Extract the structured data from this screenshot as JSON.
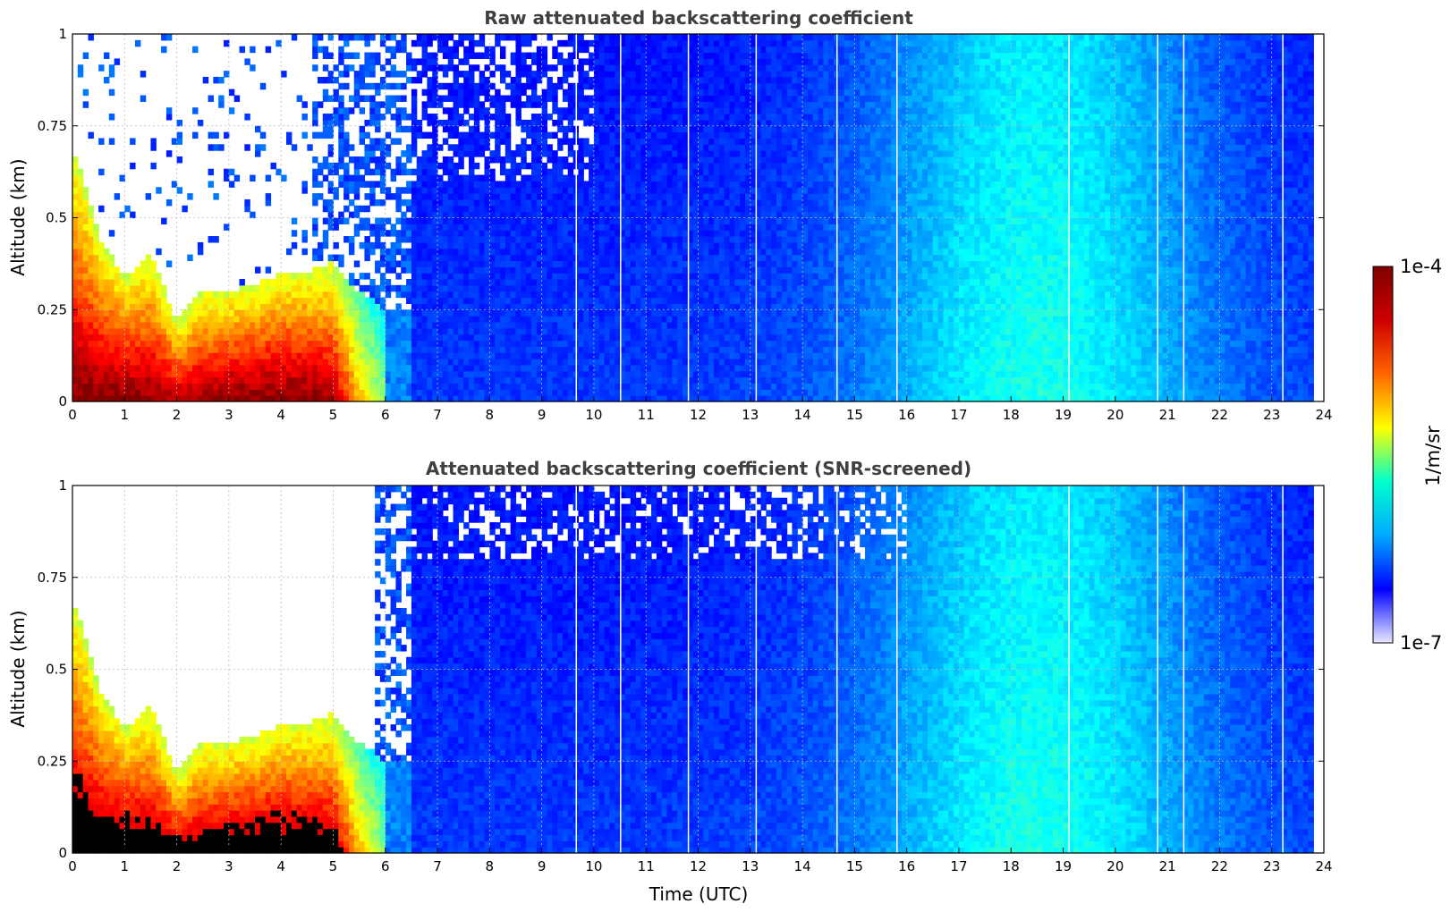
{
  "chart_data": [
    {
      "type": "heatmap",
      "title": "Raw attenuated backscattering coefficient",
      "xlabel": "",
      "ylabel": "Altitude (km)",
      "xlim": [
        0,
        24
      ],
      "ylim": [
        0,
        1
      ],
      "x_ticks": [
        "0",
        "1",
        "2",
        "3",
        "4",
        "5",
        "6",
        "7",
        "8",
        "9",
        "10",
        "11",
        "12",
        "13",
        "14",
        "15",
        "16",
        "17",
        "18",
        "19",
        "20",
        "21",
        "22",
        "23",
        "24"
      ],
      "y_ticks": [
        "0",
        "0.25",
        "0.5",
        "0.75",
        "1"
      ],
      "grid": true,
      "data_end_time": 23.8,
      "screened": false,
      "features": [
        {
          "time": 0.0,
          "aerosol_layer_top": 0.7,
          "intensity": 0.95
        },
        {
          "time": 0.5,
          "aerosol_layer_top": 0.45,
          "intensity": 0.95
        },
        {
          "time": 1.0,
          "aerosol_layer_top": 0.34,
          "intensity": 0.95
        },
        {
          "time": 1.5,
          "aerosol_layer_top": 0.4,
          "intensity": 0.93
        },
        {
          "time": 2.0,
          "aerosol_layer_top": 0.22,
          "intensity": 0.9
        },
        {
          "time": 2.5,
          "aerosol_layer_top": 0.3,
          "intensity": 0.92
        },
        {
          "time": 3.0,
          "aerosol_layer_top": 0.3,
          "intensity": 0.95
        },
        {
          "time": 3.5,
          "aerosol_layer_top": 0.32,
          "intensity": 0.95
        },
        {
          "time": 4.0,
          "aerosol_layer_top": 0.35,
          "intensity": 0.95
        },
        {
          "time": 4.5,
          "aerosol_layer_top": 0.35,
          "intensity": 0.95
        },
        {
          "time": 5.0,
          "aerosol_layer_top": 0.38,
          "intensity": 0.9
        },
        {
          "time": 5.5,
          "aerosol_layer_top": 0.3,
          "intensity": 0.55
        },
        {
          "time": 6.0,
          "aerosol_layer_top": 0.25,
          "intensity": 0.3
        }
      ]
    },
    {
      "type": "heatmap",
      "title": "Attenuated backscattering coefficient (SNR-screened)",
      "xlabel": "Time (UTC)",
      "ylabel": "Altitude (km)",
      "xlim": [
        0,
        24
      ],
      "ylim": [
        0,
        1
      ],
      "x_ticks": [
        "0",
        "1",
        "2",
        "3",
        "4",
        "5",
        "6",
        "7",
        "8",
        "9",
        "10",
        "11",
        "12",
        "13",
        "14",
        "15",
        "16",
        "17",
        "18",
        "19",
        "20",
        "21",
        "22",
        "23",
        "24"
      ],
      "y_ticks": [
        "0",
        "0.25",
        "0.5",
        "0.75",
        "1"
      ],
      "grid": true,
      "data_end_time": 23.8,
      "screened": true
    }
  ],
  "colorbar": {
    "label": "1/m/sr",
    "max_label": "1e-4",
    "min_label": "1e-7",
    "colormap": "jet",
    "colors": [
      "#e8e8ff",
      "#0000ff",
      "#00aaff",
      "#00ffcc",
      "#ffff00",
      "#ff6600",
      "#cc0000",
      "#800000"
    ]
  }
}
